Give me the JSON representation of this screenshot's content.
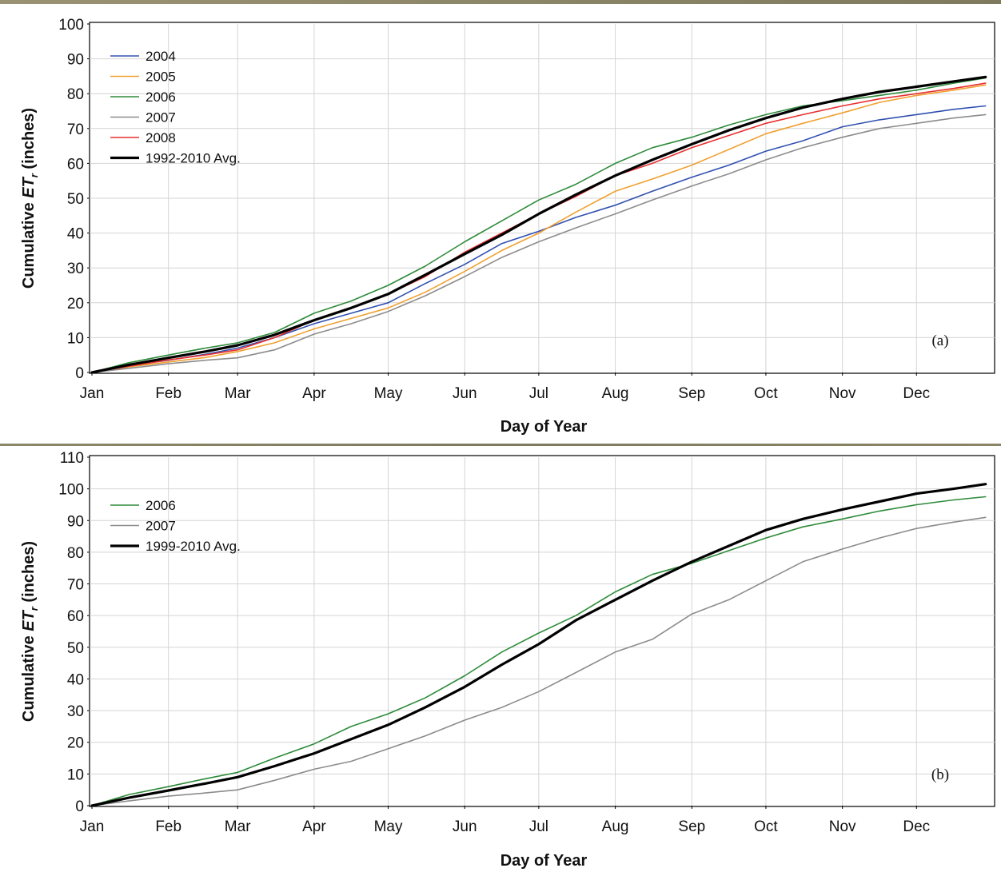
{
  "chart_data": [
    {
      "type": "line",
      "panel_label": "(a)",
      "xlabel": "Day of Year",
      "ylabel_prefix": "Cumulative ",
      "ylabel_italic": "ET",
      "ylabel_sub": "r",
      "ylabel_suffix": " (inches)",
      "x_categories": [
        "Jan",
        "Feb",
        "Mar",
        "Apr",
        "May",
        "Jun",
        "Jul",
        "Aug",
        "Sep",
        "Oct",
        "Nov",
        "Dec"
      ],
      "xlim": [
        0,
        365
      ],
      "ylim": [
        0,
        100
      ],
      "yticks": [
        0,
        10,
        20,
        30,
        40,
        50,
        60,
        70,
        80,
        90,
        100
      ],
      "legend_position": "top-left",
      "grid": true,
      "x": [
        0,
        15,
        31,
        46,
        59,
        74,
        90,
        105,
        120,
        135,
        151,
        166,
        181,
        196,
        212,
        227,
        243,
        258,
        273,
        288,
        304,
        319,
        334,
        349,
        362
      ],
      "series": [
        {
          "name": "2004",
          "color": "#3050b0",
          "width": 1.6,
          "values": [
            0,
            2.0,
            3.5,
            5.2,
            7.0,
            10.0,
            14.0,
            17.0,
            20.0,
            25.5,
            31.0,
            37.0,
            40.5,
            44.5,
            48.0,
            52.0,
            56.0,
            59.5,
            63.5,
            66.5,
            70.5,
            72.5,
            74.0,
            75.5,
            76.5
          ]
        },
        {
          "name": "2005",
          "color": "#f0a030",
          "width": 1.6,
          "values": [
            0,
            1.6,
            3.0,
            4.3,
            6.0,
            8.5,
            12.5,
            15.5,
            18.5,
            23.0,
            29.0,
            35.0,
            40.0,
            46.0,
            52.0,
            55.5,
            59.5,
            64.0,
            68.5,
            71.5,
            74.5,
            77.5,
            79.5,
            81.0,
            82.5
          ]
        },
        {
          "name": "2006",
          "color": "#2e8b3a",
          "width": 1.6,
          "values": [
            0,
            2.8,
            5.0,
            7.0,
            8.5,
            11.5,
            17.0,
            20.5,
            25.0,
            30.5,
            37.5,
            43.5,
            49.5,
            54.0,
            60.0,
            64.5,
            67.5,
            71.0,
            74.0,
            76.5,
            78.0,
            79.5,
            81.0,
            83.0,
            84.5
          ]
        },
        {
          "name": "2007",
          "color": "#8c8c8c",
          "width": 1.6,
          "values": [
            0,
            1.2,
            2.5,
            3.5,
            4.2,
            6.5,
            11.0,
            14.0,
            17.5,
            22.0,
            27.5,
            33.0,
            37.5,
            41.5,
            45.5,
            49.5,
            53.5,
            57.0,
            61.0,
            64.5,
            67.5,
            70.0,
            71.5,
            73.0,
            74.0
          ]
        },
        {
          "name": "2008",
          "color": "#e83030",
          "width": 1.6,
          "values": [
            0,
            1.8,
            3.6,
            5.0,
            6.5,
            10.0,
            15.0,
            18.5,
            22.5,
            27.5,
            34.5,
            40.0,
            45.5,
            50.5,
            56.5,
            60.0,
            64.5,
            68.0,
            71.5,
            74.0,
            76.5,
            78.5,
            80.0,
            81.5,
            83.0
          ]
        },
        {
          "name": "1992-2010 Avg.",
          "color": "#000000",
          "width": 3.2,
          "values": [
            0,
            2.2,
            4.2,
            6.0,
            7.8,
            10.8,
            15.0,
            18.5,
            22.5,
            28.0,
            34.0,
            39.5,
            45.5,
            51.0,
            56.5,
            61.0,
            65.5,
            69.5,
            73.0,
            76.0,
            78.5,
            80.5,
            82.0,
            83.5,
            84.8
          ]
        }
      ]
    },
    {
      "type": "line",
      "panel_label": "(b)",
      "xlabel": "Day of Year",
      "ylabel_prefix": "Cumulative ",
      "ylabel_italic": "ET",
      "ylabel_sub": "r",
      "ylabel_suffix": " (inches)",
      "x_categories": [
        "Jan",
        "Feb",
        "Mar",
        "Apr",
        "May",
        "Jun",
        "Jul",
        "Aug",
        "Sep",
        "Oct",
        "Nov",
        "Dec"
      ],
      "xlim": [
        0,
        365
      ],
      "ylim": [
        0,
        110
      ],
      "yticks": [
        0,
        10,
        20,
        30,
        40,
        50,
        60,
        70,
        80,
        90,
        100,
        110
      ],
      "legend_position": "top-left",
      "grid": true,
      "x": [
        0,
        15,
        31,
        46,
        59,
        74,
        90,
        105,
        120,
        135,
        151,
        166,
        181,
        196,
        212,
        227,
        243,
        258,
        273,
        288,
        304,
        319,
        334,
        349,
        362
      ],
      "series": [
        {
          "name": "2006",
          "color": "#2e8b3a",
          "width": 1.6,
          "values": [
            0,
            3.5,
            6.0,
            8.5,
            10.5,
            15.0,
            19.5,
            25.0,
            29.0,
            34.0,
            41.0,
            48.5,
            54.5,
            60.0,
            67.5,
            73.0,
            76.5,
            80.5,
            84.5,
            88.0,
            90.5,
            93.0,
            95.0,
            96.5,
            97.5
          ]
        },
        {
          "name": "2007",
          "color": "#8c8c8c",
          "width": 1.6,
          "values": [
            0,
            1.5,
            3.0,
            4.0,
            5.0,
            8.0,
            11.5,
            14.0,
            18.0,
            22.0,
            27.0,
            31.0,
            36.0,
            42.0,
            48.5,
            52.5,
            60.5,
            65.0,
            71.0,
            77.0,
            81.0,
            84.5,
            87.5,
            89.5,
            91.0
          ]
        },
        {
          "name": "1999-2010 Avg.",
          "color": "#000000",
          "width": 3.2,
          "values": [
            0,
            2.5,
            4.8,
            7.0,
            9.0,
            12.5,
            16.5,
            21.0,
            25.5,
            31.0,
            37.5,
            44.5,
            51.0,
            58.5,
            65.0,
            71.0,
            77.0,
            82.0,
            87.0,
            90.5,
            93.5,
            96.0,
            98.5,
            100.0,
            101.5
          ]
        }
      ]
    }
  ]
}
